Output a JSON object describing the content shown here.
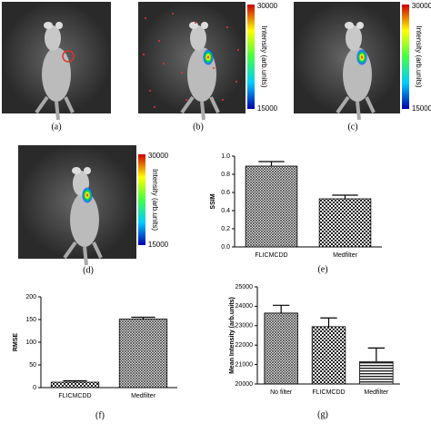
{
  "panels": [
    {
      "label": "(a)"
    },
    {
      "label": "(b)"
    },
    {
      "label": "(c)"
    },
    {
      "label": "(d)"
    }
  ],
  "colorbar": {
    "max": 30000,
    "min": 15000,
    "label": "Intensity (arb.units)"
  },
  "chart_data": [
    {
      "type": "bar",
      "caption": "(e)",
      "y_label": "SSIM",
      "categories": [
        "FLICMCDD",
        "Medfilter"
      ],
      "values": [
        0.89,
        0.53
      ],
      "errors": [
        0.05,
        0.04
      ],
      "ylim": [
        0,
        1
      ],
      "yticks": [
        {
          "value": 0,
          "label": "0.0"
        },
        0.2,
        0.4,
        0.6,
        0.8,
        {
          "value": 1,
          "label": "1.0"
        }
      ]
    },
    {
      "type": "bar",
      "caption": "(f)",
      "y_label": "RMSE",
      "categories": [
        "FLICMCDD",
        "Medfilter"
      ],
      "values": [
        12,
        151
      ],
      "errors": [
        3,
        4
      ],
      "ylim": [
        0,
        200
      ],
      "yticks": [
        0,
        50,
        100,
        150,
        200
      ]
    },
    {
      "type": "bar",
      "caption": "(g)",
      "y_label": "Mean Intensity (arb.units)",
      "categories": [
        "No filter",
        "FLICMCDD",
        "Medfilter"
      ],
      "values": [
        23650,
        22950,
        21150
      ],
      "errors": [
        400,
        450,
        700
      ],
      "ylim": [
        20000,
        25000
      ],
      "yticks": [
        20000,
        21000,
        22000,
        23000,
        24000,
        25000
      ]
    }
  ]
}
